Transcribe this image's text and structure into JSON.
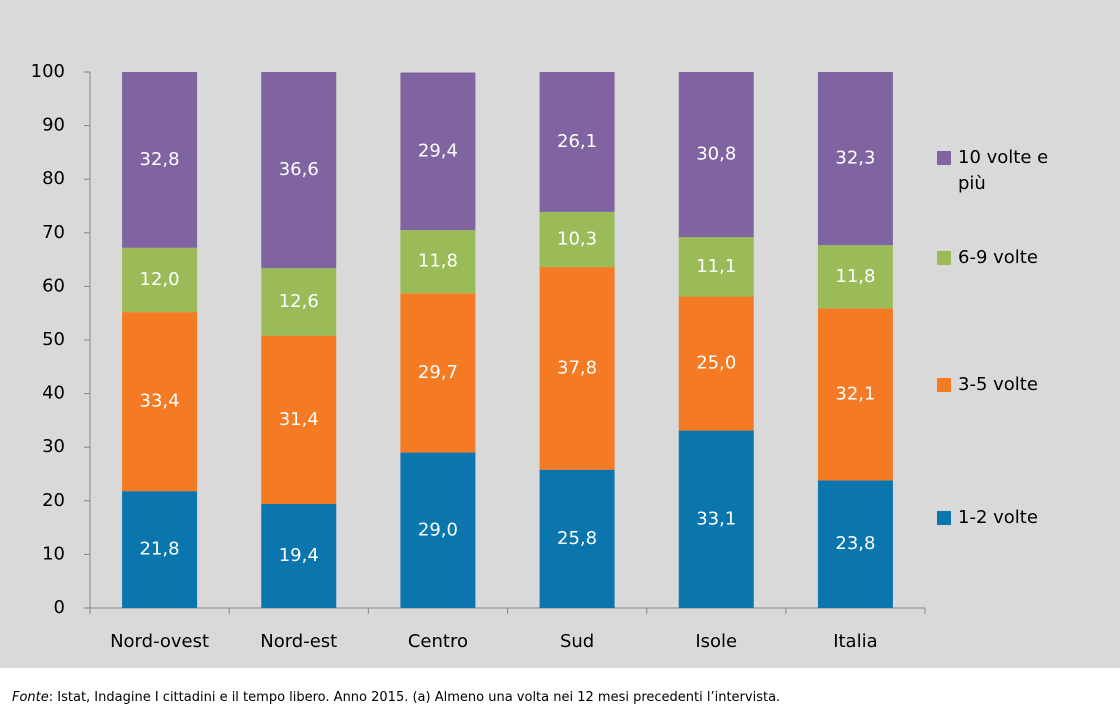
{
  "chart_data": {
    "type": "stacked_bar",
    "categories": [
      "Nord-ovest",
      "Nord-est",
      "Centro",
      "Sud",
      "Isole",
      "Italia"
    ],
    "series": [
      {
        "name": "1-2 volte",
        "color": "#0a76ad",
        "values": [
          21.8,
          19.4,
          29.0,
          25.8,
          33.1,
          23.8
        ],
        "value_labels": [
          "21,8",
          "19,4",
          "29,0",
          "25,8",
          "33,1",
          "23,8"
        ]
      },
      {
        "name": "3-5 volte",
        "color": "#f47a23",
        "values": [
          33.4,
          31.4,
          29.7,
          37.8,
          25.0,
          32.1
        ],
        "value_labels": [
          "33,4",
          "31,4",
          "29,7",
          "37,8",
          "25,0",
          "32,1"
        ]
      },
      {
        "name": "6-9 volte",
        "color": "#9bbb59",
        "values": [
          12.0,
          12.6,
          11.8,
          10.3,
          11.1,
          11.8
        ],
        "value_labels": [
          "12,0",
          "12,6",
          "11,8",
          "10,3",
          "11,1",
          "11,8"
        ]
      },
      {
        "name": "10 volte e più",
        "color": "#8064a2",
        "values": [
          32.8,
          36.6,
          29.4,
          26.1,
          30.8,
          32.3
        ],
        "value_labels": [
          "32,8",
          "36,6",
          "29,4",
          "26,1",
          "30,8",
          "32,3"
        ]
      }
    ],
    "ylim": [
      0,
      100
    ],
    "yticks": [
      0,
      10,
      20,
      30,
      40,
      50,
      60,
      70,
      80,
      90,
      100
    ],
    "legend": "right",
    "footnote": {
      "label": "Fonte",
      "text": ":  Istat, Indagine I cittadini e il tempo libero. Anno 2015. (a) Almeno una volta nei 12 mesi precedenti l’intervista."
    }
  }
}
